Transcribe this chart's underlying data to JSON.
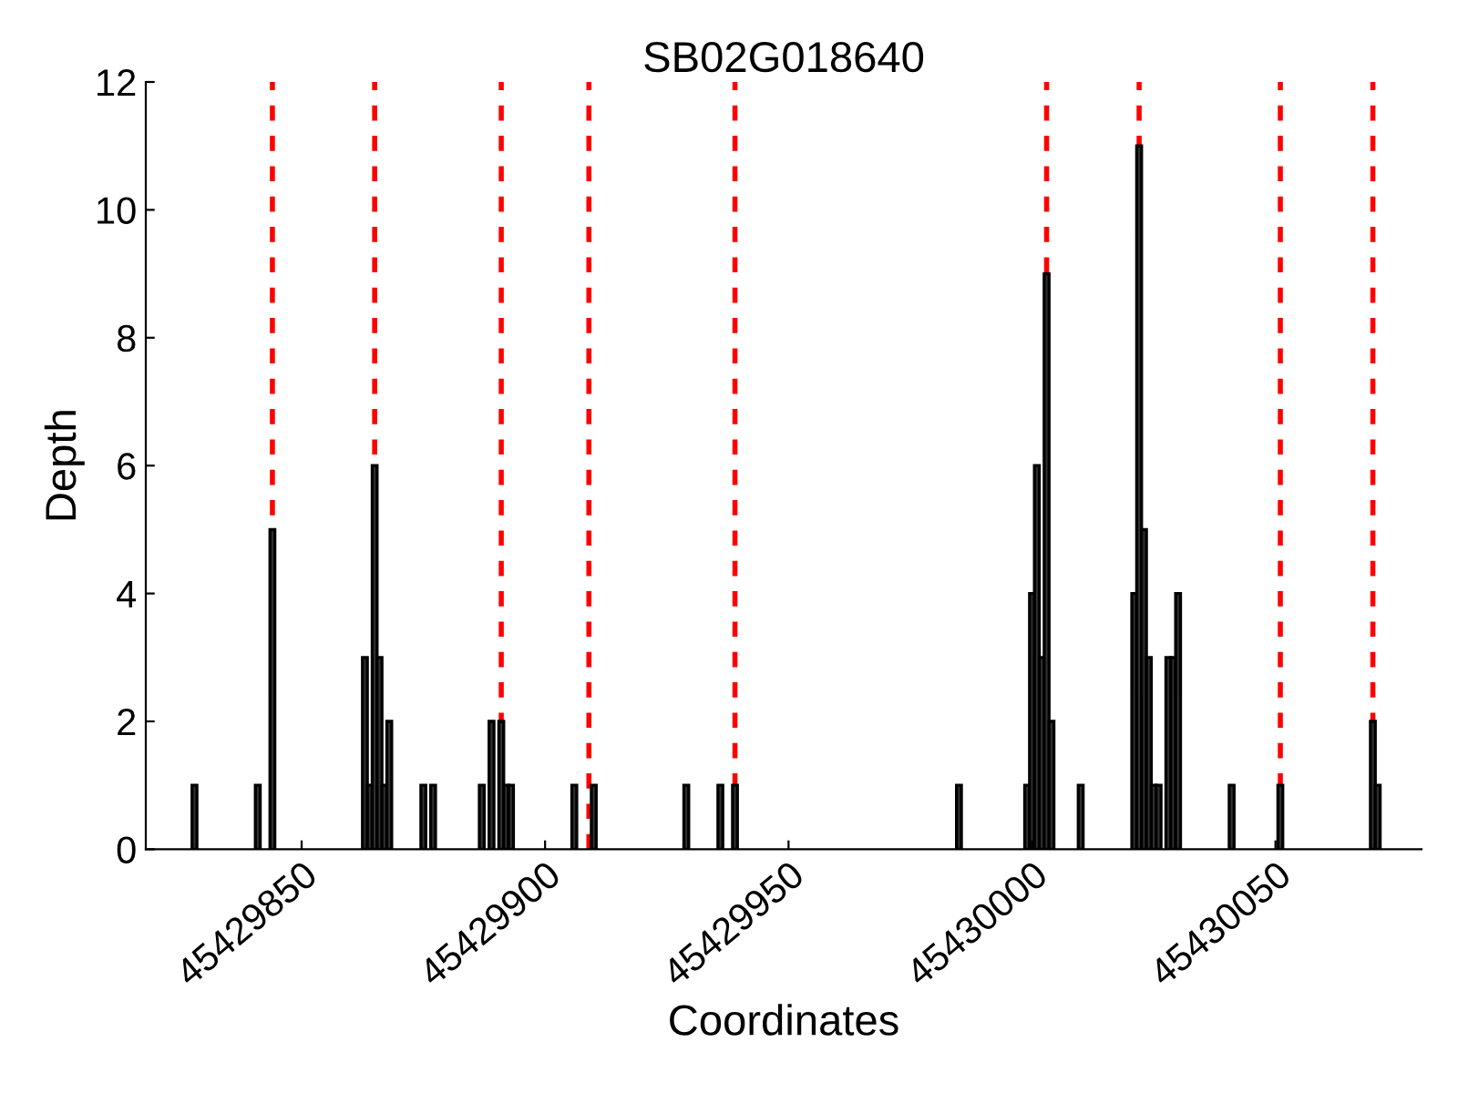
{
  "chart_data": {
    "type": "bar",
    "title": "SB02G018640",
    "xlabel": "Coordinates",
    "ylabel": "Depth",
    "x": [
      45429828,
      45429841,
      45429844,
      45429863,
      45429864,
      45429865,
      45429866,
      45429867,
      45429868,
      45429875,
      45429877,
      45429887,
      45429889,
      45429891,
      45429892,
      45429893,
      45429906,
      45429910,
      45429929,
      45429936,
      45429939,
      45429985,
      45429999,
      45430000,
      45430001,
      45430002,
      45430003,
      45430004,
      45430010,
      45430021,
      45430022,
      45430023,
      45430024,
      45430025,
      45430026,
      45430028,
      45430029,
      45430030,
      45430041,
      45430051,
      45430070,
      45430071
    ],
    "values": [
      1,
      1,
      5,
      3,
      1,
      6,
      3,
      1,
      2,
      1,
      1,
      1,
      2,
      2,
      1,
      1,
      1,
      1,
      1,
      1,
      1,
      1,
      1,
      4,
      6,
      3,
      9,
      2,
      1,
      4,
      11,
      5,
      3,
      1,
      1,
      3,
      3,
      4,
      1,
      1,
      2,
      1
    ],
    "color": "#333333",
    "xlim": [
      45429818,
      45430080
    ],
    "xticks": [
      45429850,
      45429900,
      45429950,
      45430000,
      45430050
    ],
    "ylim": [
      0,
      12
    ],
    "yticks": [
      0,
      2,
      4,
      6,
      8,
      10,
      12
    ],
    "grid": false,
    "ref_lines": [
      {
        "axis": "x",
        "value": 45429844,
        "color": "#ff0000",
        "line_style": "dashed"
      },
      {
        "axis": "x",
        "value": 45429865,
        "color": "#ff0000",
        "line_style": "dashed"
      },
      {
        "axis": "x",
        "value": 45429891,
        "color": "#ff0000",
        "line_style": "dashed"
      },
      {
        "axis": "x",
        "value": 45429909,
        "color": "#ff0000",
        "line_style": "dashed"
      },
      {
        "axis": "x",
        "value": 45429939,
        "color": "#ff0000",
        "line_style": "dashed"
      },
      {
        "axis": "x",
        "value": 45430003,
        "color": "#ff0000",
        "line_style": "dashed"
      },
      {
        "axis": "x",
        "value": 45430022,
        "color": "#ff0000",
        "line_style": "dashed"
      },
      {
        "axis": "x",
        "value": 45430051,
        "color": "#ff0000",
        "line_style": "dashed"
      },
      {
        "axis": "x",
        "value": 45430070,
        "color": "#ff0000",
        "line_style": "dashed"
      }
    ]
  }
}
